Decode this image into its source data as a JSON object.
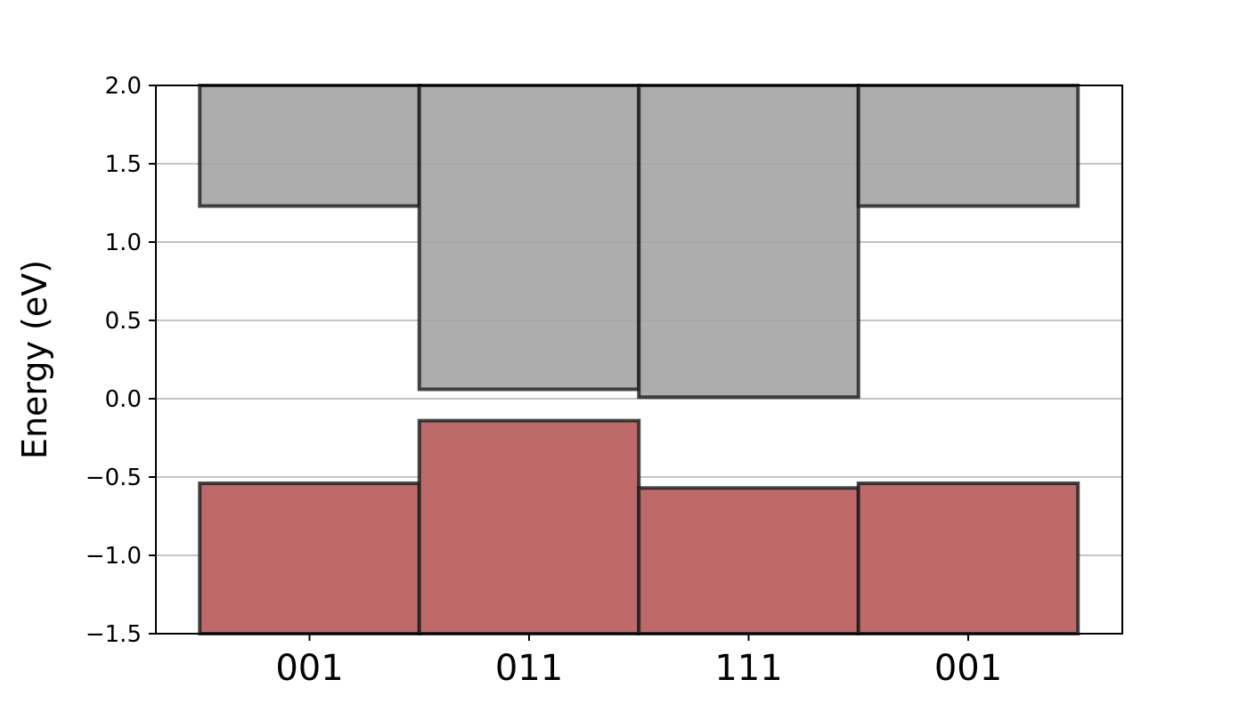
{
  "chart_data": {
    "type": "bar",
    "categories": [
      "001",
      "011",
      "111",
      "001"
    ],
    "series": [
      {
        "values_bottom": [
          1.23,
          0.06,
          0.01,
          1.23
        ],
        "values_top": [
          2.0,
          2.0,
          2.0,
          2.0
        ]
      },
      {
        "values_bottom": [
          -1.5,
          -1.5,
          -1.5,
          -1.5
        ],
        "values_top": [
          -0.54,
          -0.14,
          -0.57,
          -0.54
        ]
      }
    ],
    "title": "",
    "xlabel": "",
    "ylabel": "Energy (eV)",
    "ylim": [
      -1.5,
      2.0
    ],
    "yticks": [
      "−1.5",
      "−1.0",
      "−0.5",
      "0.0",
      "0.5",
      "1.0",
      "1.5",
      "2.0"
    ],
    "ytick_values": [
      -1.5,
      -1.0,
      -0.5,
      0.0,
      0.5,
      1.0,
      1.5,
      2.0
    ],
    "grid": "horizontal",
    "colors": {
      "upper_fill": "#a6a6a6",
      "lower_fill": "#bf6a6a",
      "edge": "#1a1a1a",
      "grid": "#b0b0b0"
    }
  }
}
